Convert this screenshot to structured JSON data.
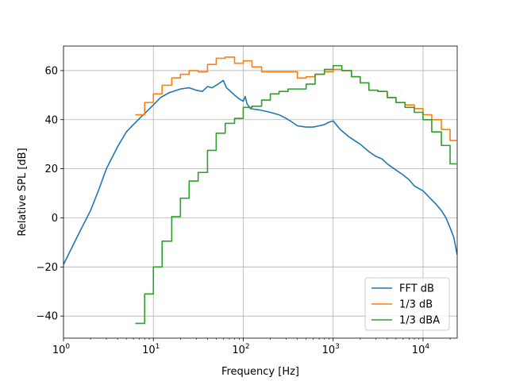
{
  "chart_data": {
    "type": "line",
    "title": "",
    "xlabel": "Frequency [Hz]",
    "ylabel": "Relative SPL [dB]",
    "xscale": "log",
    "xlim": [
      1,
      24000
    ],
    "ylim": [
      -49,
      70
    ],
    "grid": true,
    "legend_position": "bottom-right",
    "x_ticks": [
      {
        "value": 1,
        "base": "10",
        "exp": "0"
      },
      {
        "value": 10,
        "base": "10",
        "exp": "1"
      },
      {
        "value": 100,
        "base": "10",
        "exp": "2"
      },
      {
        "value": 1000,
        "base": "10",
        "exp": "3"
      },
      {
        "value": 10000,
        "base": "10",
        "exp": "4"
      }
    ],
    "y_ticks": [
      {
        "value": -40,
        "label": "−40"
      },
      {
        "value": -20,
        "label": "−20"
      },
      {
        "value": 0,
        "label": "0"
      },
      {
        "value": 20,
        "label": "20"
      },
      {
        "value": 40,
        "label": "40"
      },
      {
        "value": 60,
        "label": "60"
      }
    ],
    "series": [
      {
        "name": "FFT dB",
        "style": "line",
        "color": "#1f77b4",
        "x": [
          1,
          1.5,
          2,
          2.5,
          3,
          4,
          5,
          6,
          7,
          8,
          10,
          12,
          15,
          20,
          25,
          30,
          35,
          40,
          45,
          50,
          55,
          60,
          65,
          70,
          80,
          90,
          100,
          105,
          110,
          120,
          150,
          200,
          250,
          300,
          350,
          400,
          500,
          600,
          700,
          800,
          900,
          1000,
          1200,
          1500,
          2000,
          2500,
          3000,
          3500,
          4000,
          5000,
          6000,
          7000,
          8000,
          10000,
          12000,
          14000,
          16000,
          18000,
          20000,
          22000,
          24000
        ],
        "y": [
          -19,
          -6,
          3,
          12,
          20,
          29,
          35,
          38,
          40.5,
          42.5,
          46,
          49,
          51,
          52.5,
          53,
          52,
          51.5,
          53.5,
          53,
          54,
          55,
          56,
          53,
          52,
          50,
          48.5,
          47.5,
          49.5,
          46.5,
          44.5,
          44,
          43,
          42,
          40.5,
          39,
          37.5,
          37,
          37,
          37.5,
          38,
          39,
          39.5,
          36,
          33,
          30,
          27,
          25,
          24,
          22,
          19.5,
          17.5,
          15.5,
          13,
          11,
          8,
          5.5,
          3,
          0,
          -4,
          -8,
          -15
        ]
      },
      {
        "name": "1/3 dB",
        "style": "step",
        "color": "#ff7f0e",
        "x": [
          6.3,
          8,
          10,
          12.5,
          16,
          20,
          25,
          31.5,
          40,
          50,
          63,
          80,
          100,
          125,
          160,
          200,
          250,
          315,
          400,
          500,
          630,
          800,
          1000,
          1250,
          1600,
          2000,
          2500,
          3150,
          4000,
          5000,
          6300,
          8000,
          10000,
          12500,
          16000,
          20000
        ],
        "y": [
          42,
          47,
          50.5,
          54,
          57,
          58.5,
          60,
          59.5,
          62.5,
          65,
          65.5,
          63,
          64,
          61.5,
          59.5,
          59.5,
          59.5,
          59.5,
          57,
          57.5,
          58.5,
          59.5,
          60.5,
          60,
          57.5,
          55,
          52,
          51.5,
          49,
          47,
          46,
          44.5,
          42,
          40,
          36,
          31.5
        ]
      },
      {
        "name": "1/3 dBA",
        "style": "step",
        "color": "#2ca02c",
        "x": [
          6.3,
          8,
          10,
          12.5,
          16,
          20,
          25,
          31.5,
          40,
          50,
          63,
          80,
          100,
          125,
          160,
          200,
          250,
          315,
          400,
          500,
          630,
          800,
          1000,
          1250,
          1600,
          2000,
          2500,
          3150,
          4000,
          5000,
          6300,
          8000,
          10000,
          12500,
          16000,
          20000
        ],
        "y": [
          -43,
          -31,
          -20,
          -9.5,
          0.5,
          8,
          15,
          18.5,
          27.5,
          34.5,
          38.5,
          40.5,
          45,
          45.5,
          48,
          50.5,
          51.5,
          52.5,
          52.5,
          54.5,
          58.5,
          60.5,
          62,
          60,
          57.5,
          55,
          52,
          51.5,
          49,
          47,
          45,
          43,
          40,
          35,
          29.5,
          22
        ]
      }
    ]
  }
}
